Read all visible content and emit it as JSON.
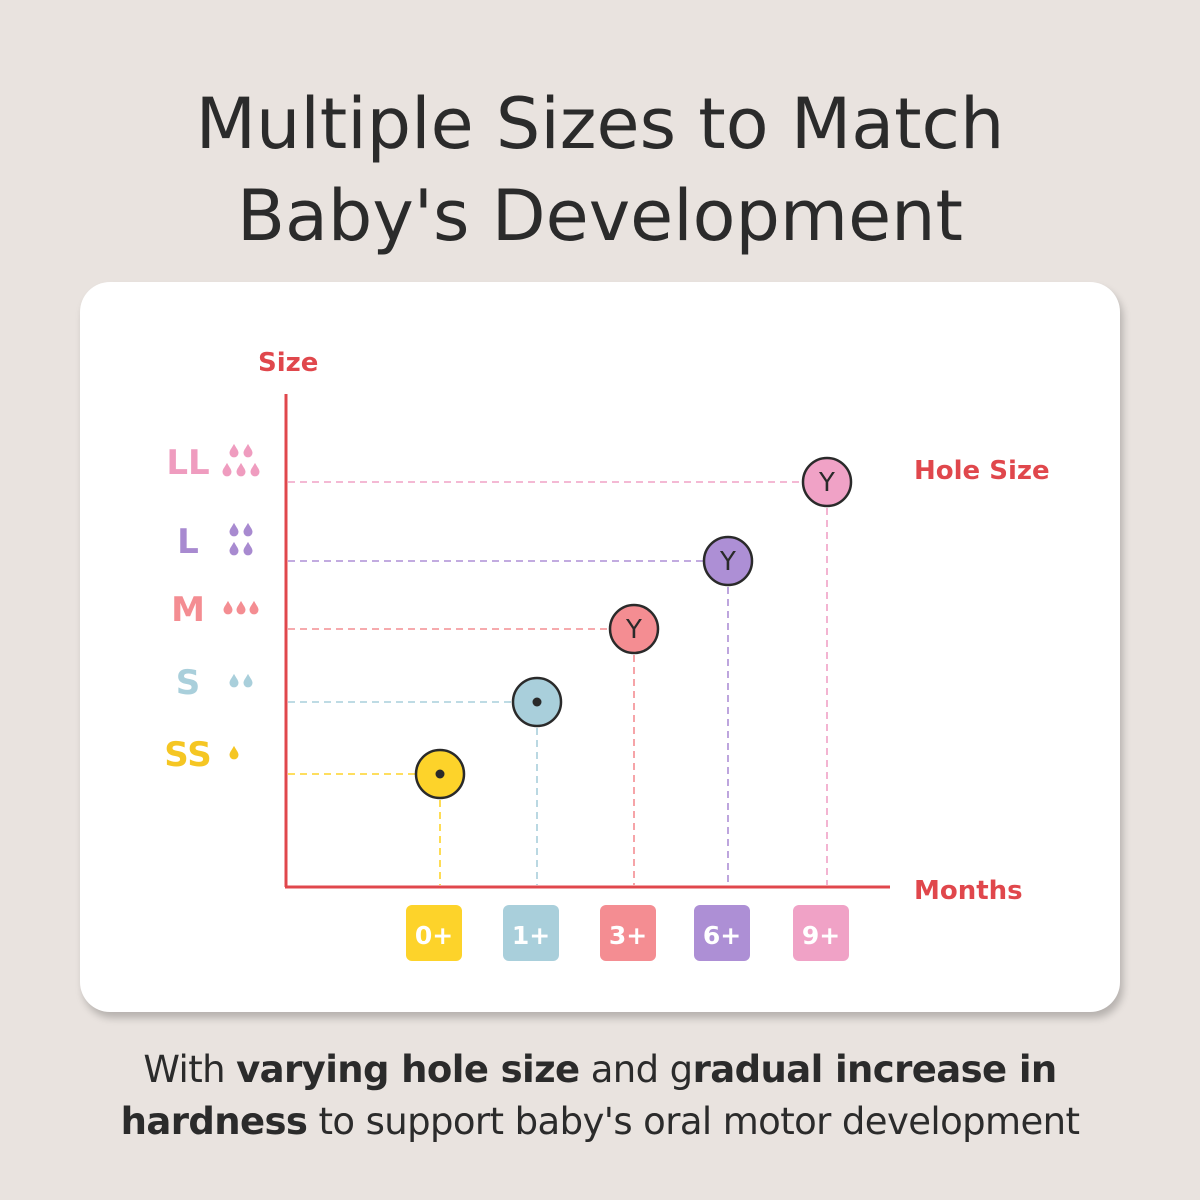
{
  "headline": {
    "line1": "Multiple Sizes to Match",
    "line2": "Baby's Development"
  },
  "caption": {
    "line1_plain1": "With ",
    "line1_bold1": "varying hole size",
    "line1_plain2": " and g",
    "line1_bold2": "radual increase in",
    "line2_bold": "hardness",
    "line2_plain": " to support baby's oral motor development"
  },
  "chart_data": {
    "type": "scatter",
    "ylabel": "Size",
    "xlabel": "Months",
    "annotation": "Hole Size",
    "axis_color": "#e0474c",
    "categories_y": [
      "SS",
      "S",
      "M",
      "L",
      "LL"
    ],
    "categories_x": [
      "0+",
      "1+",
      "3+",
      "6+",
      "9+"
    ],
    "points": [
      {
        "x": "0+",
        "y": "SS",
        "color": "#fdd32a",
        "hole": "dot"
      },
      {
        "x": "1+",
        "y": "S",
        "color": "#a9cfdb",
        "hole": "dot"
      },
      {
        "x": "3+",
        "y": "M",
        "color": "#f48d92",
        "hole": "Y"
      },
      {
        "x": "6+",
        "y": "L",
        "color": "#ad8fd5",
        "hole": "Y"
      },
      {
        "x": "9+",
        "y": "LL",
        "color": "#f0a2c6",
        "hole": "Y"
      }
    ],
    "size_labels": [
      {
        "label": "SS",
        "color": "#f5c623",
        "drops": 1
      },
      {
        "label": "S",
        "color": "#a9cfdb",
        "drops": 2
      },
      {
        "label": "M",
        "color": "#f48d92",
        "drops": 3
      },
      {
        "label": "L",
        "color": "#a88ad0",
        "drops": 4
      },
      {
        "label": "LL",
        "color": "#ef9cbf",
        "drops": 5
      }
    ],
    "month_badges": [
      {
        "label": "0+",
        "color": "#fdd32a"
      },
      {
        "label": "1+",
        "color": "#a9cfdb"
      },
      {
        "label": "3+",
        "color": "#f48d92"
      },
      {
        "label": "6+",
        "color": "#ad8fd5"
      },
      {
        "label": "9+",
        "color": "#f0a2c6"
      }
    ]
  }
}
